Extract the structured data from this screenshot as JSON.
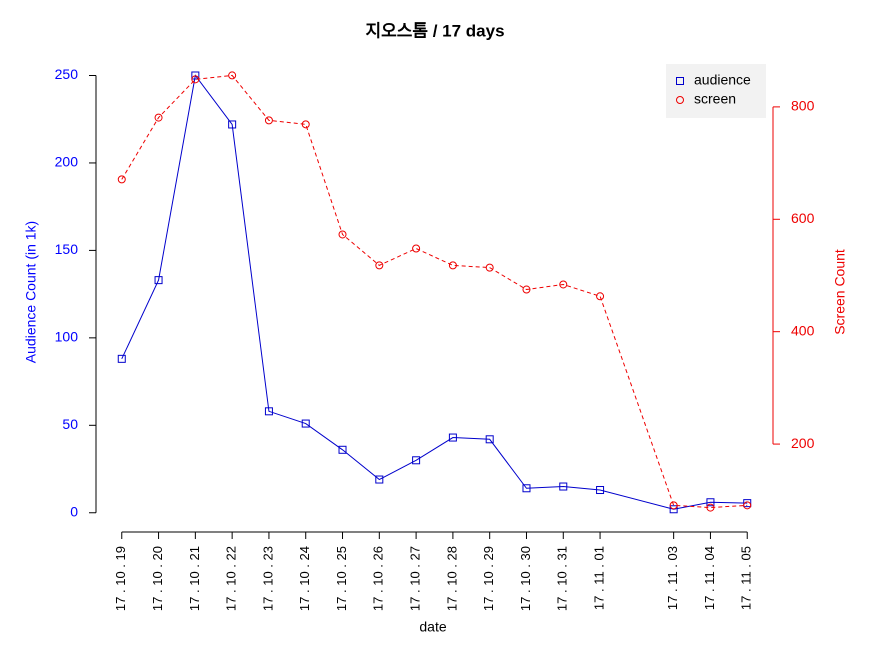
{
  "chart_data": {
    "type": "line",
    "title": "지오스톰 / 17 days",
    "x_label": "date",
    "y_label": "Audience Count (in 1k)",
    "y2_label": "Screen Count",
    "x": [
      "17 . 10 . 19",
      "17 . 10 . 20",
      "17 . 10 . 21",
      "17 . 10 . 22",
      "17 . 10 . 23",
      "17 . 10 . 24",
      "17 . 10 . 25",
      "17 . 10 . 26",
      "17 . 10 . 27",
      "17 . 10 . 28",
      "17 . 10 . 29",
      "17 . 10 . 30",
      "17 . 10 . 31",
      "17 . 11 . 01",
      "17 . 11 . 03",
      "17 . 11 . 04",
      "17 . 11 . 05"
    ],
    "series": [
      {
        "name": "audience",
        "color": "#0000cc",
        "marker": "square",
        "linestyle": "solid",
        "values": [
          88,
          133,
          250,
          222,
          58,
          51,
          36,
          19,
          30,
          43,
          42,
          14,
          15,
          13,
          2,
          6,
          5.5
        ]
      },
      {
        "name": "screen",
        "color": "#ee0000",
        "marker": "circle",
        "linestyle": "dashed",
        "axis": "y2",
        "values": [
          671,
          781,
          849,
          856,
          776,
          769,
          573,
          518,
          548,
          518,
          514,
          475,
          484,
          463,
          91,
          87,
          91
        ]
      }
    ],
    "ylim": [
      -7,
      260
    ],
    "yticks": [
      0,
      50,
      100,
      150,
      200,
      250
    ],
    "y_color": "#0000ff",
    "y2lim": [
      56,
      887
    ],
    "y2ticks": [
      200,
      400,
      600,
      800
    ],
    "y2_color": "#ee0000",
    "legend": "top-right"
  }
}
